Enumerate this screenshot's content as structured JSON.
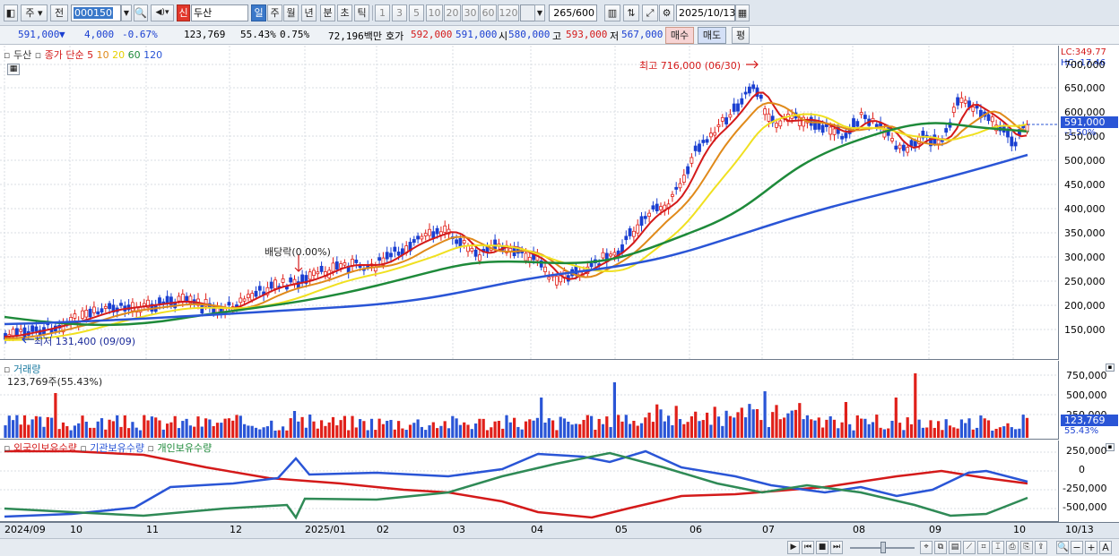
{
  "toolbar": {
    "market_label": "주",
    "prev_label": "전",
    "code_value": "000150",
    "new_badge": "신",
    "stock_name": "두산",
    "periods": [
      "일",
      "주",
      "월",
      "년",
      "분",
      "초",
      "틱"
    ],
    "intervals": [
      "1",
      "3",
      "5",
      "10",
      "20",
      "30",
      "60",
      "120"
    ],
    "count_value": "265/600",
    "date_value": "2025/10/13"
  },
  "quote": {
    "price": "591,000",
    "arrow": "▼",
    "change": "4,000",
    "change_pct": "-0.67%",
    "volume": "123,769",
    "vol_ratio": "55.43%",
    "turnover_pct": "0.75%",
    "amount": "72,196백만",
    "bid_label": "호가",
    "ask_price": "592,000",
    "bid_price": "591,000",
    "open_label": "시",
    "open": "580,000",
    "high_label": "고",
    "high": "593,000",
    "low_label": "저",
    "low": "567,000",
    "buy_label": "매수",
    "sell_label": "매도",
    "eval_label": "평"
  },
  "price_panel": {
    "stock_label": "두산",
    "ma_title": "종가 단순",
    "ma_periods": [
      "5",
      "10",
      "20",
      "60",
      "120"
    ],
    "ma_colors": [
      "#d41a1a",
      "#e08a1a",
      "#f0e020",
      "#1e8a3a",
      "#2a55d6"
    ],
    "lc_label": "LC:349.77",
    "hc_label": "HC:-17.46",
    "high_annotation": "최고 716,000 (06/30)",
    "low_annotation": "최저 131,400 (09/09)",
    "dividend_annotation": "배당락(0.00%)",
    "y_ticks": [
      "700,000",
      "650,000",
      "600,000",
      "550,000",
      "500,000",
      "450,000",
      "400,000",
      "350,000",
      "300,000",
      "250,000",
      "200,000",
      "150,000"
    ],
    "price_tag": "591,000",
    "pct_tag": "-1.50%"
  },
  "volume_panel": {
    "title": "거래량",
    "value_label": "123,769주(55.43%)",
    "y_ticks": [
      "750,000",
      "500,000",
      "250,000"
    ],
    "value_tag": "123,769",
    "pct_tag": "55.43%"
  },
  "holdings_panel": {
    "legends": [
      "외국인보유수량",
      "기관보유수량",
      "개인보유수량"
    ],
    "legend_colors": [
      "#d41a1a",
      "#2a55d6",
      "#1e8a3a"
    ],
    "y_ticks": [
      "250,000",
      "0",
      "-250,000",
      "-500,000"
    ]
  },
  "x_axis": {
    "labels": [
      "2024/09",
      "10",
      "11",
      "12",
      "2025/01",
      "02",
      "03",
      "04",
      "05",
      "06",
      "07",
      "08",
      "09",
      "10"
    ],
    "right_label": "10/13"
  }
}
